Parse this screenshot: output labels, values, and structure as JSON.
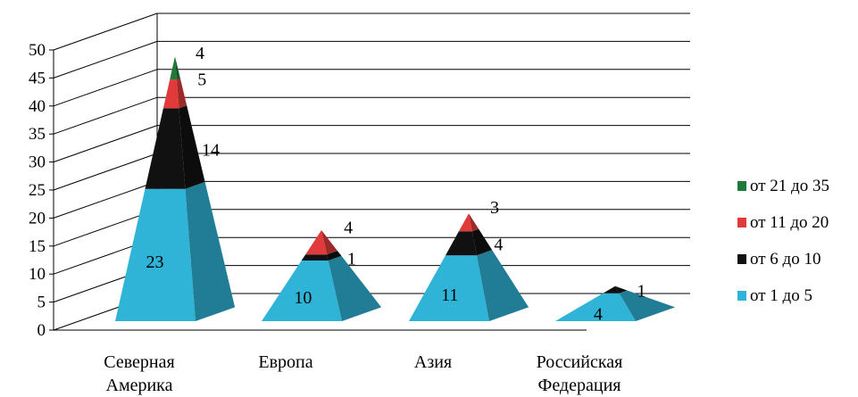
{
  "chart_data": {
    "type": "bar",
    "subtype": "stacked-pyramid-3d",
    "title": "",
    "xlabel": "",
    "ylabel": "",
    "ylim": [
      0,
      50
    ],
    "yticks": [
      0,
      5,
      10,
      15,
      20,
      25,
      30,
      35,
      40,
      45,
      50
    ],
    "grid": true,
    "legend_position": "right",
    "categories": [
      [
        "Северная",
        "Америка"
      ],
      [
        "Европа"
      ],
      [
        "Азия"
      ],
      [
        "Российская",
        "Федерация"
      ]
    ],
    "series": [
      {
        "name": "от 1 до 5",
        "color": "#2fb3d6",
        "values": [
          23,
          10,
          11,
          4
        ]
      },
      {
        "name": "от 6 до 10",
        "color": "#111111",
        "values": [
          14,
          1,
          4,
          1
        ]
      },
      {
        "name": "от 11 до 20",
        "color": "#e03a3a",
        "values": [
          5,
          4,
          3,
          0
        ]
      },
      {
        "name": "от 21 до 35",
        "color": "#1f7a3a",
        "values": [
          4,
          0,
          0,
          0
        ]
      }
    ],
    "data_labels": [
      [
        "23",
        "14",
        "5",
        "4"
      ],
      [
        "10",
        "1",
        "4",
        ""
      ],
      [
        "11",
        "4",
        "3",
        ""
      ],
      [
        "4",
        "1",
        "",
        ""
      ]
    ]
  }
}
